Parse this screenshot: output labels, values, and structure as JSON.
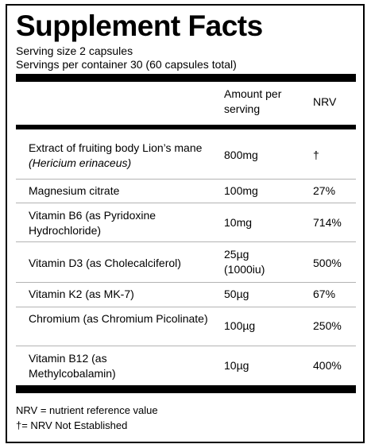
{
  "title": "Supplement Facts",
  "serving_size": "Serving size 2 capsules",
  "servings_per_container": "Servings per container 30 (60 capsules total)",
  "headers": {
    "amount": "Amount per serving",
    "nrv": "NRV"
  },
  "rows": [
    {
      "name": "Extract of fruiting body Lion’s mane",
      "latin": "(Hericium erinaceus)",
      "amount": "800mg",
      "nrv": "†"
    },
    {
      "name": "Magnesium citrate",
      "amount": "100mg",
      "nrv": "27%"
    },
    {
      "name": "Vitamin B6 (as Pyridoxine Hydrochloride)",
      "amount": "10mg",
      "nrv": "714%"
    },
    {
      "name": "Vitamin D3 (as Cholecalciferol)",
      "amount": "25µg (1000iu)",
      "nrv": "500%"
    },
    {
      "name": "Vitamin K2 (as MK-7)",
      "amount": "50µg",
      "nrv": "67%"
    },
    {
      "name": "Chromium (as Chromium Picolinate)",
      "amount": "100µg",
      "nrv": "250%"
    },
    {
      "name": "Vitamin B12 (as Methylcobalamin)",
      "amount": "10µg",
      "nrv": "400%"
    }
  ],
  "footnotes": [
    "NRV = nutrient reference value",
    "†= NRV Not Established"
  ]
}
